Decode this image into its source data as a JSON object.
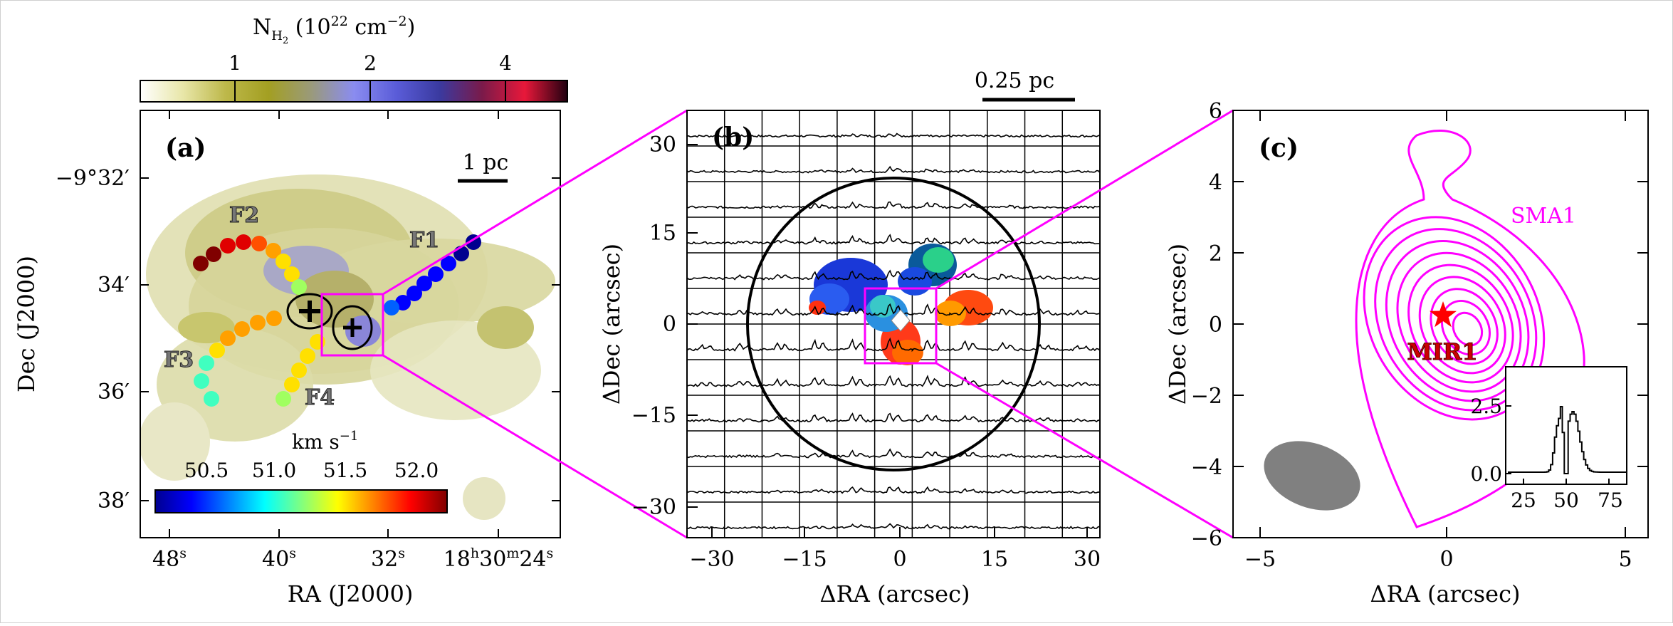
{
  "panel_a": {
    "label": "(a)",
    "colorbar_top": {
      "title_main": "N",
      "title_sub": "H",
      "title_subsub": "2",
      "title_rest": " (10",
      "title_exp": "22",
      "title_unit": " cm",
      "title_unit_exp": "−2",
      "title_close": ")",
      "tick_labels": [
        "1",
        "2",
        "4"
      ],
      "colors": [
        "#ffffff",
        "#e8e6a8",
        "#bdb84a",
        "#a39f22",
        "#9a9a7a",
        "#8a8cf0",
        "#5a5cd8",
        "#3a3aa0",
        "#7a1a4a",
        "#e8183a",
        "#200010"
      ]
    },
    "colorbar_bottom": {
      "title": "km s",
      "title_exp": "−1",
      "tick_labels": [
        "50.5",
        "51.0",
        "51.5",
        "52.0"
      ],
      "colors": [
        "#00008f",
        "#0000ff",
        "#0080ff",
        "#00ffff",
        "#80ff80",
        "#ffff00",
        "#ff8000",
        "#ff0000",
        "#800000"
      ]
    },
    "scalebar": "1 pc",
    "filaments": [
      "F1",
      "F2",
      "F3",
      "F4"
    ],
    "y_ticks": [
      "−9°32′",
      "34′",
      "36′",
      "38′"
    ],
    "x_ticks": [
      {
        "main": "48",
        "sup": "s"
      },
      {
        "main": "40",
        "sup": "s"
      },
      {
        "main": "32",
        "sup": "s"
      },
      {
        "main": "18",
        "sup": "h",
        "main2": "30",
        "sup2": "m",
        "main3": "24",
        "sup3": "s"
      }
    ],
    "xlabel": "RA (J2000)",
    "ylabel": "Dec (J2000)"
  },
  "panel_b": {
    "label": "(b)",
    "scalebar": "0.25 pc",
    "x_ticks": [
      "−30",
      "−15",
      "0",
      "15",
      "30"
    ],
    "y_ticks": [
      "30",
      "15",
      "0",
      "−15",
      "−30"
    ],
    "xlabel": "ΔRA (arcsec)",
    "ylabel": "ΔDec (arcsec)"
  },
  "panel_c": {
    "label": "(c)",
    "source_label": "SMA1",
    "star_label": "MIR1",
    "x_ticks": [
      "−5",
      "0",
      "5"
    ],
    "y_ticks": [
      "6",
      "4",
      "2",
      "0",
      "−2",
      "−4",
      "−6"
    ],
    "xlabel": "ΔRA (arcsec)",
    "ylabel": "ΔDec (arcsec)",
    "inset": {
      "x_ticks": [
        "25",
        "50",
        "75"
      ],
      "y_ticks": [
        "2.5",
        "0.0"
      ]
    }
  },
  "colors": {
    "magenta": "#ff00ff",
    "star": "#ff0000",
    "beam": "#808080"
  }
}
